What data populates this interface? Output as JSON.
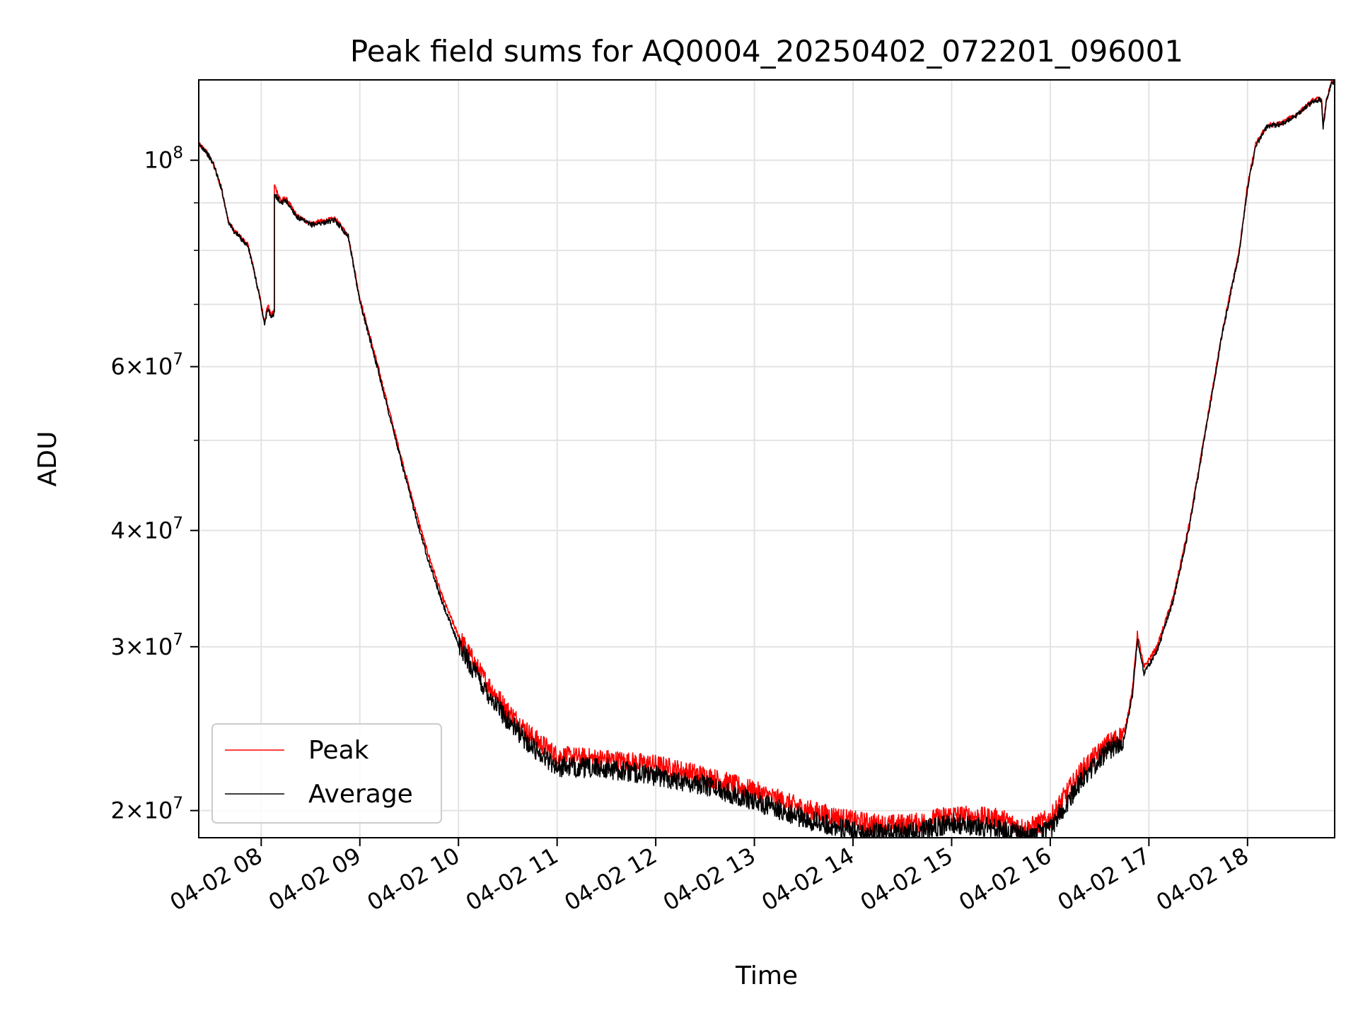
{
  "chart_data": {
    "type": "line",
    "title": "Peak field sums for AQ0004_20250402_072201_096001",
    "xlabel": "Time",
    "ylabel": "ADU",
    "y_scale": "log",
    "xlim": [
      "2025-04-02 07:22",
      "2025-04-02 18:53"
    ],
    "ylim": [
      18700000,
      122000000
    ],
    "grid": true,
    "legend_position": "lower left",
    "x_ticks": [
      {
        "t": "2025-04-02 08:00",
        "label": "04-02 08"
      },
      {
        "t": "2025-04-02 09:00",
        "label": "04-02 09"
      },
      {
        "t": "2025-04-02 10:00",
        "label": "04-02 10"
      },
      {
        "t": "2025-04-02 11:00",
        "label": "04-02 11"
      },
      {
        "t": "2025-04-02 12:00",
        "label": "04-02 12"
      },
      {
        "t": "2025-04-02 13:00",
        "label": "04-02 13"
      },
      {
        "t": "2025-04-02 14:00",
        "label": "04-02 14"
      },
      {
        "t": "2025-04-02 15:00",
        "label": "04-02 15"
      },
      {
        "t": "2025-04-02 16:00",
        "label": "04-02 16"
      },
      {
        "t": "2025-04-02 17:00",
        "label": "04-02 17"
      },
      {
        "t": "2025-04-02 18:00",
        "label": "04-02 18"
      }
    ],
    "y_ticks_major": [
      {
        "v": 20000000,
        "base": "2×10",
        "exp": "7"
      },
      {
        "v": 30000000,
        "base": "3×10",
        "exp": "7"
      },
      {
        "v": 40000000,
        "base": "4×10",
        "exp": "7"
      },
      {
        "v": 60000000,
        "base": "6×10",
        "exp": "7"
      },
      {
        "v": 100000000,
        "base": "10",
        "exp": "8"
      }
    ],
    "y_ticks_minor": [
      50000000,
      70000000,
      80000000,
      90000000
    ],
    "series": [
      {
        "name": "Peak",
        "color": "#ff0000",
        "noise": 0.022,
        "points": [
          [
            "2025-04-02 07:22",
            104000000
          ],
          [
            "2025-04-02 07:26",
            102500000
          ],
          [
            "2025-04-02 07:31",
            99000000
          ],
          [
            "2025-04-02 07:36",
            93000000
          ],
          [
            "2025-04-02 07:40",
            86000000
          ],
          [
            "2025-04-02 07:43",
            84200000
          ],
          [
            "2025-04-02 07:48",
            82500000
          ],
          [
            "2025-04-02 07:52",
            81000000
          ],
          [
            "2025-04-02 07:55",
            77000000
          ],
          [
            "2025-04-02 07:59",
            71500000
          ],
          [
            "2025-04-02 08:02",
            67000000
          ],
          [
            "2025-04-02 08:04",
            70000000
          ],
          [
            "2025-04-02 08:06",
            68000000
          ],
          [
            "2025-04-02 08:08",
            69000000
          ],
          [
            "2025-04-02 08:08",
            94000000
          ],
          [
            "2025-04-02 08:12",
            90500000
          ],
          [
            "2025-04-02 08:15",
            91000000
          ],
          [
            "2025-04-02 08:22",
            87000000
          ],
          [
            "2025-04-02 08:30",
            85500000
          ],
          [
            "2025-04-02 08:45",
            86500000
          ],
          [
            "2025-04-02 08:53",
            83000000
          ],
          [
            "2025-04-02 09:00",
            71000000
          ],
          [
            "2025-04-02 09:10",
            61000000
          ],
          [
            "2025-04-02 09:20",
            52000000
          ],
          [
            "2025-04-02 09:30",
            44500000
          ],
          [
            "2025-04-02 09:40",
            38500000
          ],
          [
            "2025-04-02 09:50",
            34000000
          ],
          [
            "2025-04-02 10:00",
            30800000
          ],
          [
            "2025-04-02 10:15",
            27800000
          ],
          [
            "2025-04-02 10:30",
            25600000
          ],
          [
            "2025-04-02 10:45",
            24000000
          ],
          [
            "2025-04-02 11:00",
            22900000
          ],
          [
            "2025-04-02 11:30",
            22700000
          ],
          [
            "2025-04-02 12:00",
            22400000
          ],
          [
            "2025-04-02 12:30",
            21800000
          ],
          [
            "2025-04-02 13:00",
            21000000
          ],
          [
            "2025-04-02 13:30",
            20100000
          ],
          [
            "2025-04-02 14:00",
            19500000
          ],
          [
            "2025-04-02 14:20",
            19300000
          ],
          [
            "2025-04-02 14:40",
            19400000
          ],
          [
            "2025-04-02 15:00",
            19800000
          ],
          [
            "2025-04-02 15:30",
            19600000
          ],
          [
            "2025-04-02 15:45",
            19100000
          ],
          [
            "2025-04-02 16:00",
            19600000
          ],
          [
            "2025-04-02 16:10",
            20900000
          ],
          [
            "2025-04-02 16:20",
            22200000
          ],
          [
            "2025-04-02 16:35",
            23600000
          ],
          [
            "2025-04-02 16:45",
            24200000
          ],
          [
            "2025-04-02 16:50",
            27000000
          ],
          [
            "2025-04-02 16:53",
            31000000
          ],
          [
            "2025-04-02 16:57",
            28500000
          ],
          [
            "2025-04-02 17:05",
            30000000
          ],
          [
            "2025-04-02 17:15",
            34000000
          ],
          [
            "2025-04-02 17:25",
            41000000
          ],
          [
            "2025-04-02 17:35",
            52000000
          ],
          [
            "2025-04-02 17:45",
            66000000
          ],
          [
            "2025-04-02 17:55",
            80000000
          ],
          [
            "2025-04-02 18:00",
            94000000
          ],
          [
            "2025-04-02 18:05",
            104000000
          ],
          [
            "2025-04-02 18:12",
            109000000
          ],
          [
            "2025-04-02 18:20",
            109500000
          ],
          [
            "2025-04-02 18:30",
            112000000
          ],
          [
            "2025-04-02 18:40",
            116000000
          ],
          [
            "2025-04-02 18:45",
            116500000
          ],
          [
            "2025-04-02 18:46",
            109000000
          ],
          [
            "2025-04-02 18:48",
            116000000
          ],
          [
            "2025-04-02 18:51",
            121000000
          ],
          [
            "2025-04-02 18:53",
            122000000
          ]
        ]
      },
      {
        "name": "Average",
        "color": "#000000",
        "noise": 0.022,
        "points": [
          [
            "2025-04-02 07:22",
            104000000
          ],
          [
            "2025-04-02 07:26",
            102500000
          ],
          [
            "2025-04-02 07:31",
            99000000
          ],
          [
            "2025-04-02 07:36",
            93000000
          ],
          [
            "2025-04-02 07:40",
            86000000
          ],
          [
            "2025-04-02 07:43",
            84000000
          ],
          [
            "2025-04-02 07:48",
            82300000
          ],
          [
            "2025-04-02 07:52",
            80800000
          ],
          [
            "2025-04-02 07:55",
            76800000
          ],
          [
            "2025-04-02 07:59",
            71300000
          ],
          [
            "2025-04-02 08:02",
            66500000
          ],
          [
            "2025-04-02 08:04",
            69500000
          ],
          [
            "2025-04-02 08:06",
            67500000
          ],
          [
            "2025-04-02 08:08",
            68500000
          ],
          [
            "2025-04-02 08:08",
            92000000
          ],
          [
            "2025-04-02 08:12",
            90000000
          ],
          [
            "2025-04-02 08:15",
            90500000
          ],
          [
            "2025-04-02 08:22",
            86800000
          ],
          [
            "2025-04-02 08:30",
            85200000
          ],
          [
            "2025-04-02 08:45",
            86200000
          ],
          [
            "2025-04-02 08:53",
            82800000
          ],
          [
            "2025-04-02 09:00",
            70500000
          ],
          [
            "2025-04-02 09:10",
            60500000
          ],
          [
            "2025-04-02 09:20",
            51500000
          ],
          [
            "2025-04-02 09:30",
            44000000
          ],
          [
            "2025-04-02 09:40",
            38000000
          ],
          [
            "2025-04-02 09:50",
            33500000
          ],
          [
            "2025-04-02 10:00",
            30200000
          ],
          [
            "2025-04-02 10:15",
            27200000
          ],
          [
            "2025-04-02 10:30",
            25000000
          ],
          [
            "2025-04-02 10:45",
            23400000
          ],
          [
            "2025-04-02 11:00",
            22300000
          ],
          [
            "2025-04-02 11:30",
            22200000
          ],
          [
            "2025-04-02 12:00",
            21800000
          ],
          [
            "2025-04-02 12:30",
            21300000
          ],
          [
            "2025-04-02 13:00",
            20500000
          ],
          [
            "2025-04-02 13:30",
            19600000
          ],
          [
            "2025-04-02 14:00",
            19000000
          ],
          [
            "2025-04-02 14:20",
            18900000
          ],
          [
            "2025-04-02 14:40",
            19000000
          ],
          [
            "2025-04-02 15:00",
            19400000
          ],
          [
            "2025-04-02 15:30",
            19100000
          ],
          [
            "2025-04-02 15:45",
            18700000
          ],
          [
            "2025-04-02 16:00",
            19100000
          ],
          [
            "2025-04-02 16:10",
            20400000
          ],
          [
            "2025-04-02 16:20",
            21700000
          ],
          [
            "2025-04-02 16:35",
            23200000
          ],
          [
            "2025-04-02 16:45",
            23900000
          ],
          [
            "2025-04-02 16:50",
            26600000
          ],
          [
            "2025-04-02 16:53",
            30500000
          ],
          [
            "2025-04-02 16:57",
            28100000
          ],
          [
            "2025-04-02 17:05",
            29700000
          ],
          [
            "2025-04-02 17:15",
            33700000
          ],
          [
            "2025-04-02 17:25",
            40700000
          ],
          [
            "2025-04-02 17:35",
            51700000
          ],
          [
            "2025-04-02 17:45",
            65700000
          ],
          [
            "2025-04-02 17:55",
            79500000
          ],
          [
            "2025-04-02 18:00",
            93500000
          ],
          [
            "2025-04-02 18:05",
            103500000
          ],
          [
            "2025-04-02 18:12",
            108800000
          ],
          [
            "2025-04-02 18:20",
            109300000
          ],
          [
            "2025-04-02 18:30",
            111800000
          ],
          [
            "2025-04-02 18:40",
            115800000
          ],
          [
            "2025-04-02 18:45",
            116300000
          ],
          [
            "2025-04-02 18:46",
            108500000
          ],
          [
            "2025-04-02 18:48",
            115800000
          ],
          [
            "2025-04-02 18:51",
            120800000
          ],
          [
            "2025-04-02 18:53",
            121800000
          ]
        ]
      }
    ]
  }
}
